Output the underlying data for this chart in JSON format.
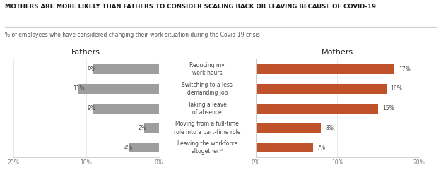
{
  "title": "MOTHERS ARE MORE LIKELY THAN FATHERS TO CONSIDER SCALING BACK OR LEAVING BECAUSE OF COVID-19",
  "subtitle": "% of employees who have considered changing their work situation during the Covid-19 crisis",
  "categories": [
    "Reducing my\nwork hours",
    "Switching to a less\ndemanding job",
    "Taking a leave\nof absence",
    "Moving from a full-time\nrole into a part-time role",
    "Leaving the workforce\naltogether¹⁸"
  ],
  "fathers_values": [
    9,
    11,
    9,
    2,
    4
  ],
  "mothers_values": [
    17,
    16,
    15,
    8,
    7
  ],
  "fathers_labels": [
    "9%",
    "11%",
    "9%",
    "2%",
    "4%"
  ],
  "mothers_labels": [
    "17%",
    "16%",
    "15%",
    "8%",
    "7%"
  ],
  "fathers_color": "#9e9e9e",
  "mothers_color": "#C0522B",
  "background_color": "#ffffff",
  "title_color": "#1a1a1a",
  "subtitle_color": "#555555",
  "label_color": "#444444",
  "tick_color": "#777777",
  "grid_color": "#e0e0e0",
  "line_color": "#cccccc",
  "xlim": 20,
  "fathers_header": "Fathers",
  "mothers_header": "Mothers",
  "title_fontsize": 6.2,
  "subtitle_fontsize": 5.5,
  "header_fontsize": 8.0,
  "tick_fontsize": 5.5,
  "label_fontsize": 5.5,
  "cat_fontsize": 5.5,
  "bar_height": 0.5,
  "fig_width": 6.24,
  "fig_height": 2.48
}
